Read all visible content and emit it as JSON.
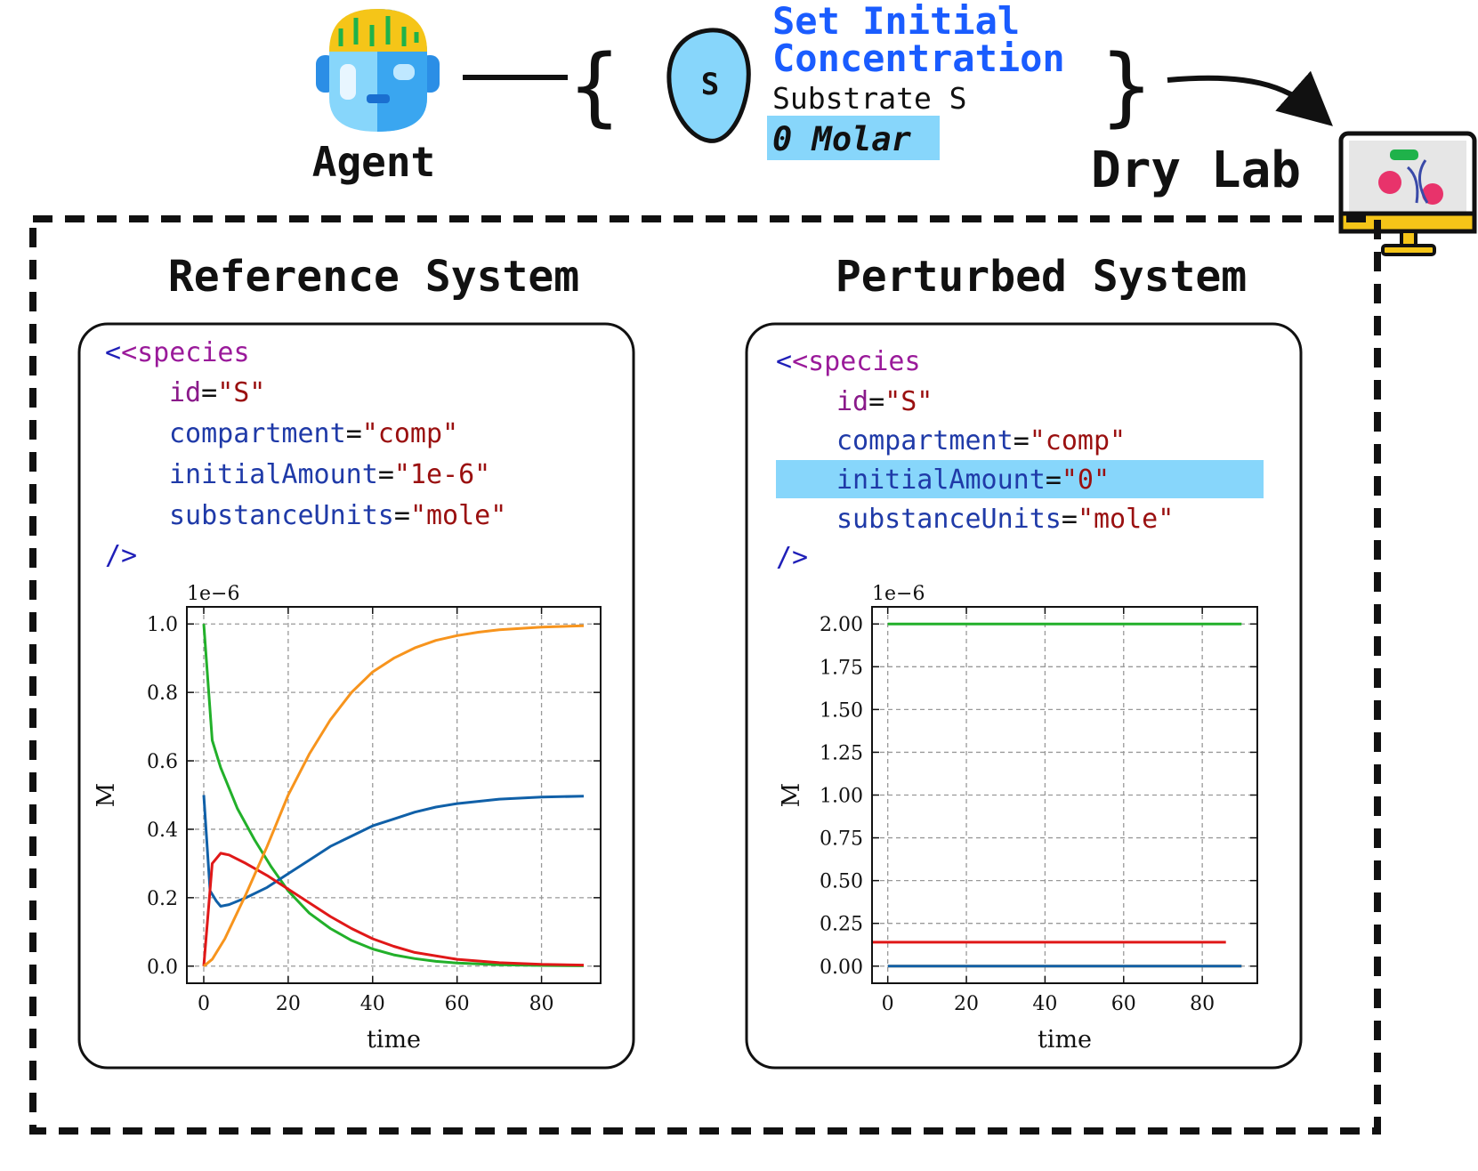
{
  "header": {
    "agent_label": "Agent",
    "action_title_line1": "Set Initial",
    "action_title_line2": "Concentration",
    "species_badge": "S",
    "target_species": "Substrate S",
    "new_value": "0 Molar",
    "destination_label": "Dry Lab"
  },
  "panels": [
    {
      "title": "Reference System",
      "code": {
        "open_tag": "<species",
        "id_attr": "id",
        "id_value": "\"S\"",
        "compartment_attr": "compartment",
        "compartment_value": "\"comp\"",
        "amount_attr": "initialAmount",
        "amount_value": "\"1e-6\"",
        "units_attr": "substanceUnits",
        "units_value": "\"mole\"",
        "close_tag": "/>"
      },
      "amount_highlighted": false
    },
    {
      "title": "Perturbed System",
      "code": {
        "open_tag": "<species",
        "id_attr": "id",
        "id_value": "\"S\"",
        "compartment_attr": "compartment",
        "compartment_value": "\"comp\"",
        "amount_attr": "initialAmount",
        "amount_value": "\"0\"",
        "units_attr": "substanceUnits",
        "units_value": "\"mole\"",
        "close_tag": "/>"
      },
      "amount_highlighted": true
    }
  ],
  "colors": {
    "action_title": "#1a5cff",
    "highlight": "#87d6fb",
    "xml_tag": "#1f1fb8",
    "xml_attr_id": "#8a1a8a",
    "xml_attr": "#1f3aa8",
    "xml_value": "#9a1010",
    "xml_tag_text": "#9a1a9a",
    "series_green": "#22b02a",
    "series_blue": "#1060a8",
    "series_red": "#e01818",
    "series_orange": "#f7941d"
  },
  "chart_data": [
    {
      "type": "line",
      "xlabel": "time",
      "ylabel": "M",
      "offset_text": "1e−6",
      "xlim": [
        -4,
        94
      ],
      "ylim": [
        -0.05,
        1.05
      ],
      "xticks": [
        0,
        20,
        40,
        60,
        80
      ],
      "yticks": [
        0.0,
        0.2,
        0.4,
        0.6,
        0.8,
        1.0
      ],
      "ytick_labels": [
        "0.0",
        "0.2",
        "0.4",
        "0.6",
        "0.8",
        "1.0"
      ],
      "grid": true,
      "series": [
        {
          "color": "#22b02a",
          "x": [
            0,
            2,
            4,
            8,
            12,
            16,
            20,
            25,
            30,
            35,
            40,
            45,
            50,
            55,
            60,
            70,
            80,
            90
          ],
          "values": [
            1.0,
            0.66,
            0.58,
            0.46,
            0.37,
            0.29,
            0.22,
            0.155,
            0.11,
            0.075,
            0.05,
            0.033,
            0.022,
            0.014,
            0.009,
            0.004,
            0.002,
            0.001
          ]
        },
        {
          "color": "#1060a8",
          "x": [
            0,
            1.5,
            3,
            4,
            6,
            10,
            15,
            20,
            25,
            30,
            35,
            40,
            45,
            50,
            55,
            60,
            70,
            80,
            90
          ],
          "values": [
            0.5,
            0.22,
            0.19,
            0.175,
            0.18,
            0.2,
            0.23,
            0.27,
            0.31,
            0.35,
            0.38,
            0.41,
            0.43,
            0.45,
            0.465,
            0.475,
            0.488,
            0.494,
            0.497
          ]
        },
        {
          "color": "#e01818",
          "x": [
            0,
            2,
            4,
            6,
            10,
            15,
            20,
            25,
            30,
            35,
            40,
            45,
            50,
            60,
            70,
            80,
            90
          ],
          "values": [
            0.0,
            0.3,
            0.33,
            0.325,
            0.3,
            0.265,
            0.225,
            0.185,
            0.145,
            0.11,
            0.08,
            0.058,
            0.04,
            0.02,
            0.01,
            0.005,
            0.003
          ]
        },
        {
          "color": "#f7941d",
          "x": [
            0,
            2,
            5,
            10,
            15,
            20,
            25,
            30,
            35,
            40,
            45,
            50,
            55,
            60,
            65,
            70,
            80,
            90
          ],
          "values": [
            0.0,
            0.02,
            0.08,
            0.21,
            0.35,
            0.5,
            0.62,
            0.72,
            0.8,
            0.86,
            0.9,
            0.93,
            0.952,
            0.966,
            0.976,
            0.983,
            0.991,
            0.995
          ]
        }
      ]
    },
    {
      "type": "line",
      "xlabel": "time",
      "ylabel": "M",
      "offset_text": "1e−6",
      "xlim": [
        -4,
        94
      ],
      "ylim": [
        -0.1,
        2.1
      ],
      "xticks": [
        0,
        20,
        40,
        60,
        80
      ],
      "yticks": [
        0.0,
        0.25,
        0.5,
        0.75,
        1.0,
        1.25,
        1.5,
        1.75,
        2.0
      ],
      "ytick_labels": [
        "0.00",
        "0.25",
        "0.50",
        "0.75",
        "1.00",
        "1.25",
        "1.50",
        "1.75",
        "2.00"
      ],
      "grid": true,
      "series": [
        {
          "color": "#22b02a",
          "x": [
            0,
            90
          ],
          "values": [
            2.0,
            2.0
          ]
        },
        {
          "color": "#e01818",
          "x": [
            -4,
            86
          ],
          "values": [
            0.14,
            0.14
          ]
        },
        {
          "color": "#f7941d",
          "x": [
            0,
            90
          ],
          "values": [
            0.0,
            0.0
          ]
        },
        {
          "color": "#1060a8",
          "x": [
            0,
            90
          ],
          "values": [
            0.0,
            0.0
          ]
        }
      ]
    }
  ]
}
